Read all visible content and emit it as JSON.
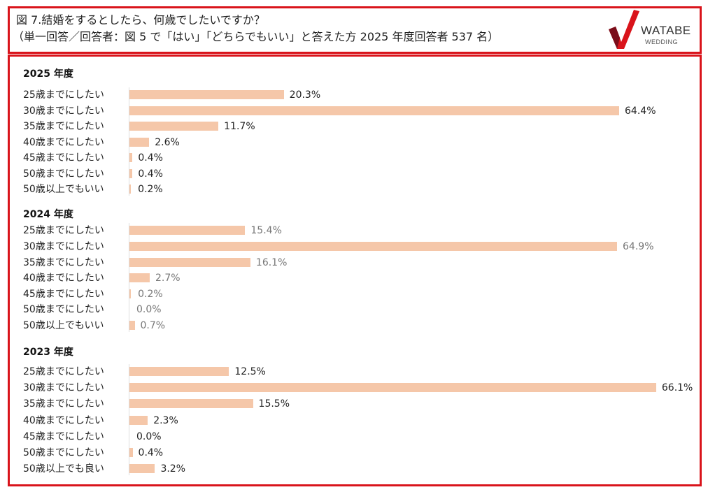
{
  "header": {
    "title_line1": "図 7.結婚をするとしたら、何歳でしたいですか？",
    "title_line2": "（単一回答／回答者：図 5 で「はい」「どちらでもいい」と答えた方 2025 年度回答者 537 名）",
    "logo_text": "WATABE",
    "logo_sub": "WEDDING"
  },
  "colors": {
    "bar": "#f5c7a9",
    "frame": "#d9141b"
  },
  "chart_data": [
    {
      "type": "bar",
      "orientation": "horizontal",
      "title": "2025 年度",
      "categories": [
        "25歳までにしたい",
        "30歳までにしたい",
        "35歳までにしたい",
        "40歳までにしたい",
        "45歳までにしたい",
        "50歳までにしたい",
        "50歳以上でもいい"
      ],
      "values": [
        20.3,
        64.4,
        11.7,
        2.6,
        0.4,
        0.4,
        0.2
      ],
      "labels": [
        "20.3%",
        "64.4%",
        "11.7%",
        "2.6%",
        "0.4%",
        "0.4%",
        "0.2%"
      ]
    },
    {
      "type": "bar",
      "orientation": "horizontal",
      "title": "2024 年度",
      "categories": [
        "25歳までにしたい",
        "30歳までにしたい",
        "35歳までにしたい",
        "40歳までにしたい",
        "45歳までにしたい",
        "50歳までにしたい",
        "50歳以上でもいい"
      ],
      "values": [
        15.4,
        64.9,
        16.1,
        2.7,
        0.2,
        0.0,
        0.7
      ],
      "labels": [
        "15.4%",
        "64.9%",
        "16.1%",
        "2.7%",
        "0.2%",
        "0.0%",
        "0.7%"
      ]
    },
    {
      "type": "bar",
      "orientation": "horizontal",
      "title": "2023 年度",
      "categories": [
        "25歳までにしたい",
        "30歳までにしたい",
        "35歳までにしたい",
        "40歳までにしたい",
        "45歳までにしたい",
        "50歳までにしたい",
        "50歳以上でも良い"
      ],
      "values": [
        12.5,
        66.1,
        15.5,
        2.3,
        0.0,
        0.4,
        3.2
      ],
      "labels": [
        "12.5%",
        "66.1%",
        "15.5%",
        "2.3%",
        "0.0%",
        "0.4%",
        "3.2%"
      ]
    }
  ]
}
